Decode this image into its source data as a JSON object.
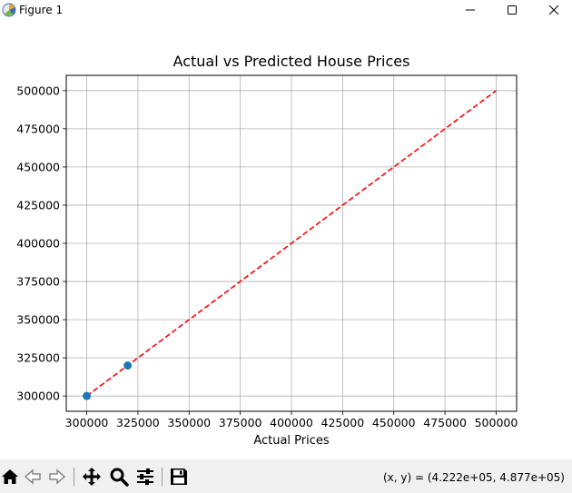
{
  "window": {
    "title": "Figure 1",
    "icon": "matplotlib-icon",
    "controls": [
      "minimize-icon",
      "maximize-icon",
      "close-icon"
    ]
  },
  "toolbar": {
    "buttons": [
      "home-icon",
      "back-icon",
      "forward-icon",
      "pan-icon",
      "zoom-icon",
      "configure-subplots-icon",
      "save-icon"
    ],
    "coords_text": "(x, y) = (4.222e+05, 4.877e+05)"
  },
  "colors": {
    "points": "#1f77b4",
    "line": "#ff0000",
    "grid": "#b0b0b0",
    "toolbar_bg": "#f0f0f0"
  },
  "chart_data": {
    "type": "scatter",
    "title": "Actual vs Predicted House Prices",
    "xlabel": "Actual Prices",
    "ylabel": "",
    "xlim": [
      290000,
      510000
    ],
    "ylim": [
      290000,
      510000
    ],
    "x_ticks": [
      300000,
      325000,
      350000,
      375000,
      400000,
      425000,
      450000,
      475000,
      500000
    ],
    "y_ticks": [
      300000,
      325000,
      350000,
      375000,
      400000,
      425000,
      450000,
      475000,
      500000
    ],
    "x_tick_labels": [
      "300000",
      "325000",
      "350000",
      "375000",
      "400000",
      "425000",
      "450000",
      "475000",
      "500000"
    ],
    "y_tick_labels": [
      "300000",
      "325000",
      "350000",
      "375000",
      "400000",
      "425000",
      "450000",
      "475000",
      "500000"
    ],
    "grid": true,
    "series": [
      {
        "type": "scatter",
        "x": [
          300000,
          320000
        ],
        "y": [
          300000,
          320000
        ]
      },
      {
        "type": "line",
        "style": "dashed",
        "x": [
          300000,
          500000
        ],
        "y": [
          300000,
          500000
        ]
      }
    ]
  }
}
